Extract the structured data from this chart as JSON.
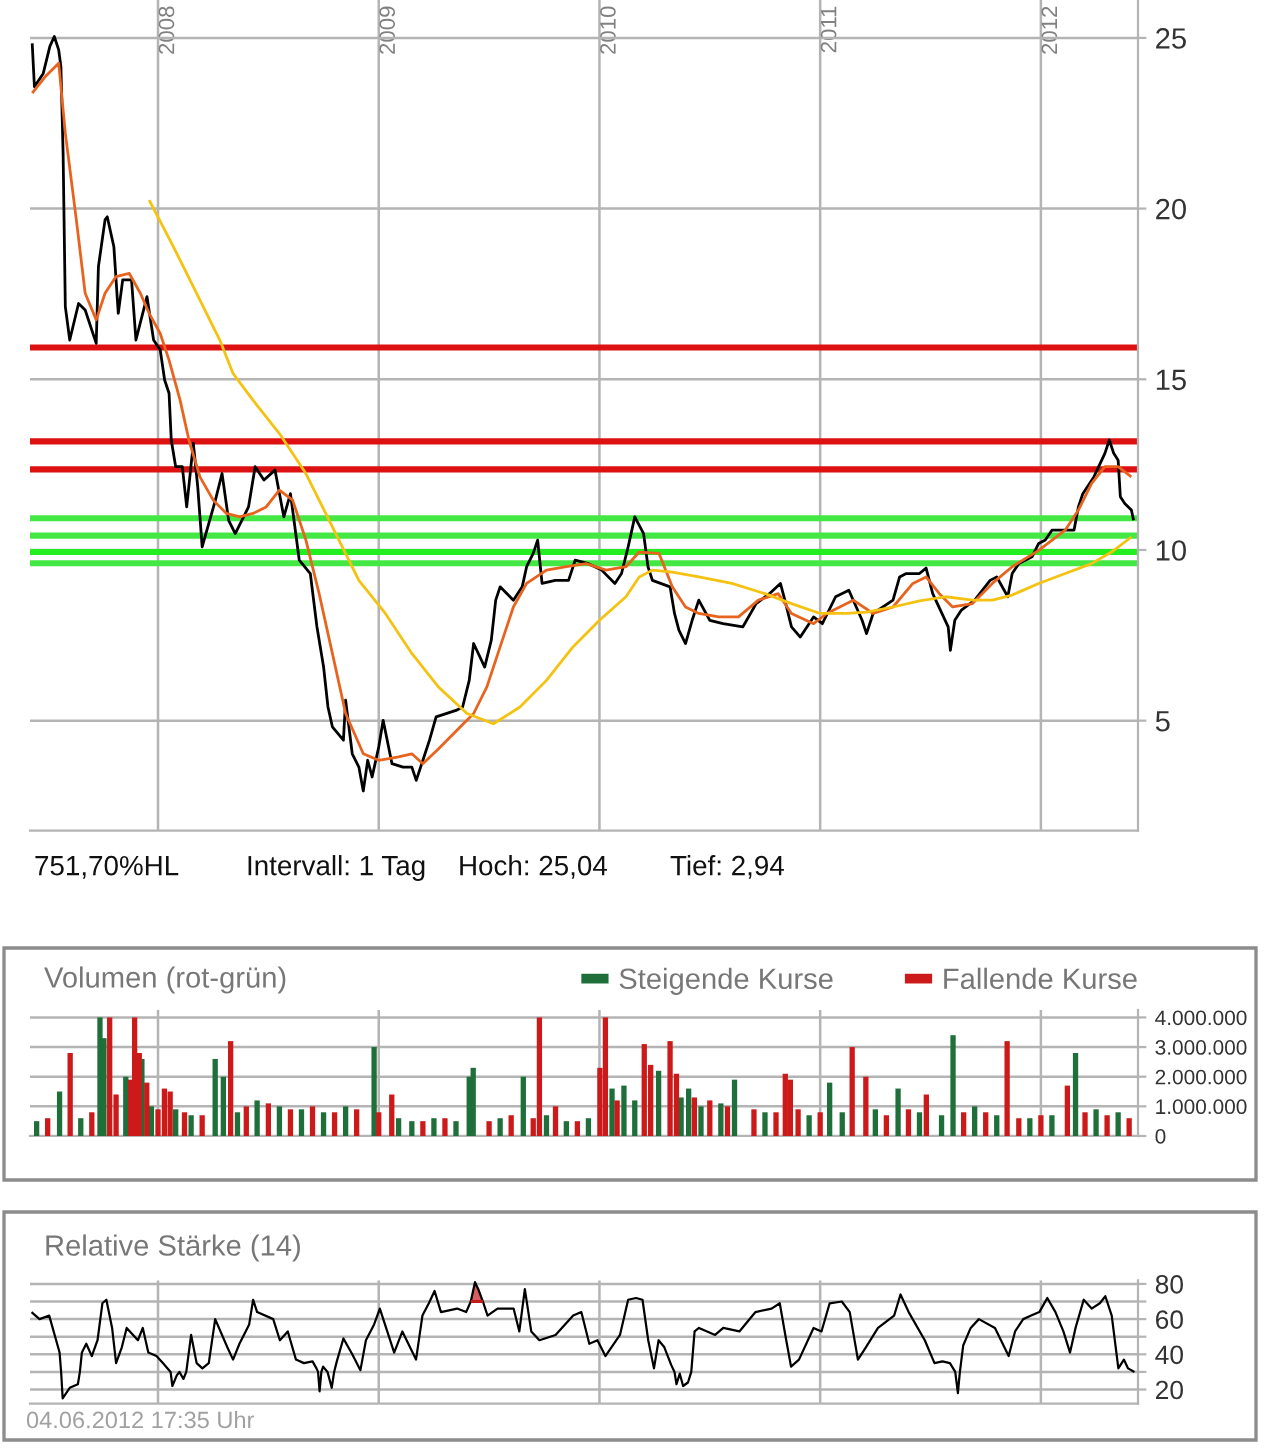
{
  "chart_data": [
    {
      "type": "line",
      "series": [
        {
          "color": "#000000",
          "x": [
            2007.43,
            2007.44,
            2007.48,
            2007.51,
            2007.53,
            2007.55,
            2007.56,
            2007.57,
            2007.58,
            2007.6,
            2007.64,
            2007.67,
            2007.72,
            2007.73,
            2007.76,
            2007.77,
            2007.8,
            2007.82,
            2007.84,
            2007.88,
            2007.9,
            2007.95,
            2007.98,
            2008.01,
            2008.03,
            2008.05,
            2008.06,
            2008.08,
            2008.11,
            2008.13,
            2008.16,
            2008.18,
            2008.2,
            2008.26,
            2008.29,
            2008.32,
            2008.35,
            2008.41,
            2008.44,
            2008.48,
            2008.53,
            2008.57,
            2008.6,
            2008.62,
            2008.64,
            2008.69,
            2008.72,
            2008.75,
            2008.77,
            2008.79,
            2008.84,
            2008.85,
            2008.88,
            2008.91,
            2008.93,
            2008.95,
            2008.97,
            2009.0,
            2009.02,
            2009.06,
            2009.11,
            2009.15,
            2009.17,
            2009.2,
            2009.23,
            2009.26,
            2009.35,
            2009.38,
            2009.41,
            2009.43,
            2009.48,
            2009.51,
            2009.53,
            2009.55,
            2009.61,
            2009.65,
            2009.67,
            2009.7,
            2009.72,
            2009.74,
            2009.8,
            2009.86,
            2009.89,
            2009.95,
            2010.01,
            2010.07,
            2010.1,
            2010.13,
            2010.16,
            2010.2,
            2010.22,
            2010.24,
            2010.32,
            2010.34,
            2010.36,
            2010.39,
            2010.42,
            2010.45,
            2010.5,
            2010.56,
            2010.65,
            2010.71,
            2010.77,
            2010.82,
            2010.84,
            2010.87,
            2010.91,
            2010.97,
            2011.01,
            2011.07,
            2011.13,
            2011.19,
            2011.21,
            2011.24,
            2011.33,
            2011.36,
            2011.39,
            2011.45,
            2011.48,
            2011.51,
            2011.58,
            2011.59,
            2011.61,
            2011.64,
            2011.7,
            2011.77,
            2011.8,
            2011.85,
            2011.87,
            2011.9,
            2011.96,
            2011.99,
            2012.02,
            2012.05,
            2012.11,
            2012.15,
            2012.17,
            2012.19,
            2012.24,
            2012.29,
            2012.31,
            2012.33,
            2012.35,
            2012.36,
            2012.38,
            2012.41,
            2012.42
          ],
          "values": [
            24.84,
            23.57,
            23.96,
            24.75,
            25.04,
            24.65,
            24.16,
            21.62,
            17.13,
            16.15,
            17.22,
            17.03,
            16.05,
            18.3,
            19.67,
            19.76,
            18.88,
            16.93,
            17.91,
            17.91,
            16.15,
            17.42,
            16.15,
            15.86,
            14.98,
            14.59,
            13.22,
            12.44,
            12.44,
            11.26,
            13.12,
            11.85,
            10.09,
            11.46,
            12.24,
            10.87,
            10.48,
            11.26,
            12.44,
            12.05,
            12.34,
            10.97,
            11.65,
            10.68,
            9.7,
            9.31,
            7.75,
            6.58,
            5.4,
            4.82,
            4.43,
            5.6,
            4.03,
            3.64,
            2.94,
            3.84,
            3.35,
            4.23,
            5.01,
            3.74,
            3.64,
            3.64,
            3.25,
            3.84,
            4.43,
            5.11,
            5.3,
            5.4,
            6.18,
            7.26,
            6.57,
            7.36,
            8.53,
            8.92,
            8.53,
            8.92,
            9.51,
            9.9,
            10.29,
            9.02,
            9.11,
            9.11,
            9.7,
            9.6,
            9.41,
            9.02,
            9.31,
            10.09,
            10.97,
            10.48,
            9.51,
            9.11,
            8.92,
            8.14,
            7.65,
            7.26,
            7.94,
            8.53,
            7.94,
            7.84,
            7.75,
            8.43,
            8.72,
            9.02,
            8.53,
            7.75,
            7.45,
            8.04,
            7.84,
            8.63,
            8.82,
            7.94,
            7.55,
            8.14,
            8.53,
            9.21,
            9.31,
            9.31,
            9.47,
            8.72,
            7.75,
            7.06,
            7.94,
            8.24,
            8.53,
            9.11,
            9.21,
            8.63,
            9.31,
            9.6,
            9.8,
            10.19,
            10.29,
            10.58,
            10.58,
            10.58,
            11.26,
            11.65,
            12.14,
            12.83,
            13.22,
            12.83,
            12.63,
            11.56,
            11.36,
            11.17,
            10.87
          ]
        },
        {
          "color": "#e8641e",
          "x": [
            2007.43,
            2007.49,
            2007.55,
            2007.58,
            2007.63,
            2007.67,
            2007.72,
            2007.76,
            2007.81,
            2007.87,
            2007.92,
            2007.96,
            2008.01,
            2008.05,
            2008.1,
            2008.14,
            2008.19,
            2008.25,
            2008.31,
            2008.37,
            2008.43,
            2008.49,
            2008.55,
            2008.61,
            2008.67,
            2008.73,
            2008.79,
            2008.85,
            2008.93,
            2009.0,
            2009.09,
            2009.15,
            2009.2,
            2009.27,
            2009.37,
            2009.43,
            2009.49,
            2009.55,
            2009.61,
            2009.67,
            2009.76,
            2009.85,
            2009.94,
            2010.03,
            2010.12,
            2010.18,
            2010.27,
            2010.33,
            2010.39,
            2010.45,
            2010.54,
            2010.63,
            2010.72,
            2010.81,
            2010.87,
            2010.97,
            2011.03,
            2011.15,
            2011.24,
            2011.33,
            2011.42,
            2011.48,
            2011.54,
            2011.6,
            2011.69,
            2011.78,
            2011.87,
            2011.99,
            2012.11,
            2012.17,
            2012.23,
            2012.29,
            2012.35,
            2012.41
          ],
          "values": [
            23.38,
            23.87,
            24.26,
            22.21,
            19.67,
            17.52,
            16.74,
            17.52,
            18.01,
            18.1,
            17.52,
            16.93,
            16.34,
            15.56,
            14.39,
            13.22,
            12.14,
            11.46,
            11.07,
            10.97,
            11.07,
            11.26,
            11.75,
            11.46,
            10.29,
            8.72,
            6.97,
            5.21,
            4.03,
            3.84,
            3.94,
            4.03,
            3.74,
            4.17,
            4.82,
            5.21,
            5.99,
            7.16,
            8.33,
            9.02,
            9.41,
            9.51,
            9.6,
            9.41,
            9.51,
            9.94,
            9.9,
            8.92,
            8.33,
            8.14,
            8.04,
            8.04,
            8.53,
            8.72,
            8.14,
            7.84,
            8.14,
            8.53,
            8.14,
            8.33,
            9.02,
            9.21,
            8.72,
            8.33,
            8.43,
            9.02,
            9.51,
            9.99,
            10.58,
            11.17,
            11.95,
            12.44,
            12.44,
            12.14
          ]
        },
        {
          "color": "#f5c211",
          "x": [
            2007.96,
            2008.07,
            2008.19,
            2008.28,
            2008.34,
            2008.43,
            2008.55,
            2008.67,
            2008.79,
            2008.91,
            2009.03,
            2009.15,
            2009.27,
            2009.4,
            2009.52,
            2009.64,
            2009.76,
            2009.88,
            2010.0,
            2010.12,
            2010.18,
            2010.24,
            2010.33,
            2010.45,
            2010.6,
            2010.75,
            2010.87,
            2011.0,
            2011.12,
            2011.21,
            2011.33,
            2011.45,
            2011.57,
            2011.69,
            2011.78,
            2011.87,
            2011.99,
            2012.11,
            2012.23,
            2012.32,
            2012.41
          ],
          "values": [
            20.25,
            18.88,
            17.32,
            16.15,
            15.17,
            14.39,
            13.41,
            12.24,
            10.68,
            9.11,
            8.14,
            6.97,
            5.99,
            5.21,
            4.91,
            5.4,
            6.18,
            7.16,
            7.94,
            8.63,
            9.21,
            9.41,
            9.35,
            9.21,
            9.02,
            8.72,
            8.43,
            8.14,
            8.14,
            8.18,
            8.33,
            8.51,
            8.63,
            8.53,
            8.53,
            8.68,
            9.02,
            9.31,
            9.6,
            9.94,
            10.38
          ]
        }
      ],
      "xlim": [
        2007.42,
        2012.44
      ],
      "xticks": [
        2008,
        2009,
        2010,
        2011,
        2012
      ],
      "ylim": [
        1.78,
        26.11
      ],
      "yticks": [
        5,
        10,
        15,
        20,
        25
      ],
      "grid": true,
      "ref_lines": [
        {
          "axis": "y",
          "value": 15.93,
          "color": "#dd1111"
        },
        {
          "axis": "y",
          "value": 13.18,
          "color": "#dd1111"
        },
        {
          "axis": "y",
          "value": 12.36,
          "color": "#dd1111"
        },
        {
          "axis": "y",
          "value": 10.93,
          "color": "#44e844"
        },
        {
          "axis": "y",
          "value": 10.42,
          "color": "#44e844"
        },
        {
          "axis": "y",
          "value": 9.94,
          "color": "#22ee22"
        },
        {
          "axis": "y",
          "value": 9.61,
          "color": "#44e844"
        }
      ],
      "annotations": [
        "751,70%HL",
        "Intervall: 1 Tag",
        "Hoch: 25,04",
        "Tief: 2,94"
      ]
    },
    {
      "type": "bar",
      "title": "Volumen (rot-grün)",
      "series": [
        {
          "name": "Steigende Kurse",
          "color": "#1f6f3a",
          "x": [
            2007.45,
            2007.554,
            2007.65,
            2007.737,
            2007.755,
            2007.854,
            2007.927,
            2007.97,
            2008.08,
            2008.15,
            2008.259,
            2008.296,
            2008.36,
            2008.449,
            2008.55,
            2008.65,
            2008.75,
            2008.85,
            2008.979,
            2009.09,
            2009.15,
            2009.25,
            2009.35,
            2009.41,
            2009.428,
            2009.55,
            2009.655,
            2009.76,
            2009.85,
            2009.95,
            2010.057,
            2010.111,
            2010.16,
            2010.268,
            2010.37,
            2010.404,
            2010.46,
            2010.55,
            2010.612,
            2010.75,
            2010.95,
            2011.043,
            2011.1,
            2011.25,
            2011.353,
            2011.45,
            2011.55,
            2011.602,
            2011.7,
            2011.8,
            2011.95,
            2012.05,
            2012.157,
            2012.25,
            2012.35
          ],
          "values": [
            500000,
            1500000,
            600000,
            4000000,
            3300000,
            2000000,
            2600000,
            1000000,
            900000,
            700000,
            2600000,
            2000000,
            800000,
            1200000,
            1000000,
            900000,
            800000,
            1000000,
            3000000,
            600000,
            500000,
            600000,
            500000,
            2000000,
            2300000,
            600000,
            2000000,
            700000,
            500000,
            600000,
            1600000,
            1700000,
            1200000,
            2200000,
            1300000,
            1600000,
            1000000,
            1100000,
            1900000,
            800000,
            700000,
            1800000,
            800000,
            900000,
            1600000,
            800000,
            700000,
            3400000,
            1000000,
            700000,
            600000,
            700000,
            2800000,
            900000,
            800000
          ]
        },
        {
          "name": "Fallende Kurse",
          "color": "#cc1a1a",
          "x": [
            2007.5,
            2007.602,
            2007.7,
            2007.781,
            2007.81,
            2007.876,
            2007.894,
            2007.915,
            2007.949,
            2008.0,
            2008.029,
            2008.055,
            2008.12,
            2008.2,
            2008.329,
            2008.4,
            2008.5,
            2008.6,
            2008.7,
            2008.8,
            2008.9,
            2009.0,
            2009.059,
            2009.2,
            2009.3,
            2009.5,
            2009.6,
            2009.7,
            2009.728,
            2009.801,
            2009.9,
            2010.002,
            2010.027,
            2010.08,
            2010.203,
            2010.232,
            2010.32,
            2010.349,
            2010.43,
            2010.5,
            2010.58,
            2010.7,
            2010.8,
            2010.842,
            2010.865,
            2010.9,
            2011.0,
            2011.145,
            2011.207,
            2011.3,
            2011.4,
            2011.481,
            2011.65,
            2011.75,
            2011.847,
            2011.9,
            2012.0,
            2012.12,
            2012.2,
            2012.3,
            2012.4
          ],
          "values": [
            600000,
            2800000,
            800000,
            4000000,
            1400000,
            1900000,
            4000000,
            2800000,
            1800000,
            900000,
            1600000,
            1500000,
            800000,
            700000,
            3200000,
            1000000,
            1100000,
            900000,
            1000000,
            800000,
            900000,
            800000,
            1400000,
            500000,
            600000,
            500000,
            700000,
            600000,
            4000000,
            1000000,
            500000,
            2300000,
            4000000,
            1200000,
            3100000,
            2400000,
            3200000,
            2100000,
            1300000,
            1200000,
            1000000,
            900000,
            800000,
            2100000,
            1900000,
            900000,
            800000,
            3000000,
            2000000,
            700000,
            900000,
            1400000,
            800000,
            800000,
            3200000,
            600000,
            700000,
            1700000,
            800000,
            700000,
            600000
          ]
        }
      ],
      "xlim": [
        2007.42,
        2012.44
      ],
      "xticks": [
        2008,
        2009,
        2010,
        2011,
        2012
      ],
      "ylim": [
        0,
        4250000
      ],
      "yticks": [
        0,
        {
          "value": 1000000,
          "label": "1.000.000"
        },
        {
          "value": 2000000,
          "label": "2.000.000"
        },
        {
          "value": 3000000,
          "label": "3.000.000"
        },
        {
          "value": 4000000,
          "label": "4.000.000"
        }
      ],
      "grid": true,
      "legend": "top right",
      "tick_labels": "y"
    },
    {
      "type": "line",
      "title": "Relative Stärke (14)",
      "series": [
        {
          "color": "#000000",
          "x": [
            2007.427,
            2007.463,
            2007.507,
            2007.554,
            2007.561,
            2007.568,
            2007.6,
            2007.637,
            2007.646,
            2007.655,
            2007.675,
            2007.7,
            2007.726,
            2007.748,
            2007.766,
            2007.792,
            2007.81,
            2007.836,
            2007.858,
            2007.909,
            2007.931,
            2007.956,
            2007.993,
            2008.022,
            2008.057,
            2008.065,
            2008.085,
            2008.097,
            2008.115,
            2008.128,
            2008.15,
            2008.175,
            2008.201,
            2008.23,
            2008.259,
            2008.314,
            2008.34,
            2008.369,
            2008.413,
            2008.431,
            2008.449,
            2008.522,
            2008.552,
            2008.588,
            2008.625,
            2008.661,
            2008.7,
            2008.718,
            2008.725,
            2008.732,
            2008.74,
            2008.748,
            2008.768,
            2008.787,
            2008.798,
            2008.81,
            2008.84,
            2008.88,
            2008.917,
            2008.942,
            2008.979,
            2009.005,
            2009.07,
            2009.107,
            2009.169,
            2009.198,
            2009.227,
            2009.253,
            2009.282,
            2009.355,
            2009.396,
            2009.417,
            2009.436,
            2009.451,
            2009.472,
            2009.493,
            2009.538,
            2009.611,
            2009.637,
            2009.662,
            2009.691,
            2009.728,
            2009.801,
            2009.881,
            2009.918,
            2009.954,
            2009.991,
            2010.027,
            2010.093,
            2010.13,
            2010.166,
            2010.195,
            2010.221,
            2010.247,
            2010.268,
            2010.294,
            2010.325,
            2010.34,
            2010.349,
            2010.364,
            2010.379,
            2010.401,
            2010.416,
            2010.431,
            2010.451,
            2010.524,
            2010.561,
            2010.634,
            2010.707,
            2010.78,
            2010.817,
            2010.842,
            2010.868,
            2010.904,
            2010.97,
            2011.006,
            2011.043,
            2011.098,
            2011.134,
            2011.171,
            2011.207,
            2011.262,
            2011.335,
            2011.364,
            2011.401,
            2011.474,
            2011.518,
            2011.554,
            2011.588,
            2011.612,
            2011.624,
            2011.633,
            2011.648,
            2011.682,
            2011.719,
            2011.792,
            2011.854,
            2011.883,
            2011.92,
            2011.956,
            2011.993,
            2012.029,
            2012.066,
            2012.102,
            2012.132,
            2012.157,
            2012.194,
            2012.23,
            2012.267,
            2012.292,
            2012.321,
            2012.351,
            2012.376,
            2012.395,
            2012.424
          ],
          "values": [
            64,
            60,
            62,
            41,
            30,
            15,
            21,
            23,
            30,
            41,
            46,
            39,
            48,
            69,
            71,
            55,
            35,
            44,
            55,
            48,
            55,
            41,
            39,
            35,
            30,
            22,
            28,
            30,
            26,
            30,
            51,
            35,
            32,
            35,
            60,
            44,
            37,
            46,
            57,
            71,
            64,
            60,
            48,
            53,
            37,
            35,
            36,
            32,
            30,
            19,
            30,
            33,
            30,
            21,
            30,
            36,
            49,
            40,
            31,
            48,
            57,
            66,
            41,
            53,
            37,
            62,
            69,
            76,
            64,
            66,
            64,
            70,
            81,
            77,
            70,
            62,
            66,
            66,
            53,
            77,
            53,
            48,
            51,
            62,
            64,
            46,
            48,
            39,
            51,
            71,
            72,
            71,
            48,
            32,
            48,
            44,
            34,
            30,
            23,
            29,
            22,
            24,
            30,
            53,
            55,
            51,
            55,
            53,
            64,
            66,
            69,
            51,
            33,
            37,
            55,
            53,
            69,
            70,
            64,
            37,
            44,
            55,
            62,
            74,
            64,
            48,
            35,
            36,
            35,
            30,
            18,
            30,
            45,
            55,
            60,
            55,
            39,
            53,
            60,
            62,
            64,
            72,
            64,
            53,
            41,
            55,
            71,
            66,
            69,
            73,
            62,
            32,
            37,
            32,
            30
          ]
        },
        {
          "color": "#c41a1a",
          "x": [
            2009.417,
            2009.436,
            2009.451,
            2009.472
          ],
          "values": [
            70,
            70,
            70,
            70
          ],
          "lower": [
            70,
            70,
            70,
            70
          ],
          "upper": [
            70,
            81,
            77,
            70
          ]
        }
      ],
      "xlim": [
        2007.42,
        2012.44
      ],
      "xticks": [
        2008,
        2009,
        2010,
        2011,
        2012
      ],
      "ylim": [
        12,
        82
      ],
      "yticks": [
        20,
        {
          "value": 30,
          "label": null
        },
        40,
        {
          "value": 50,
          "label": null
        },
        60,
        {
          "value": 70,
          "label": null
        },
        80
      ],
      "grid": true,
      "tick_labels": "y",
      "annotations": [
        "04.06.2012 17:35 Uhr"
      ]
    }
  ]
}
